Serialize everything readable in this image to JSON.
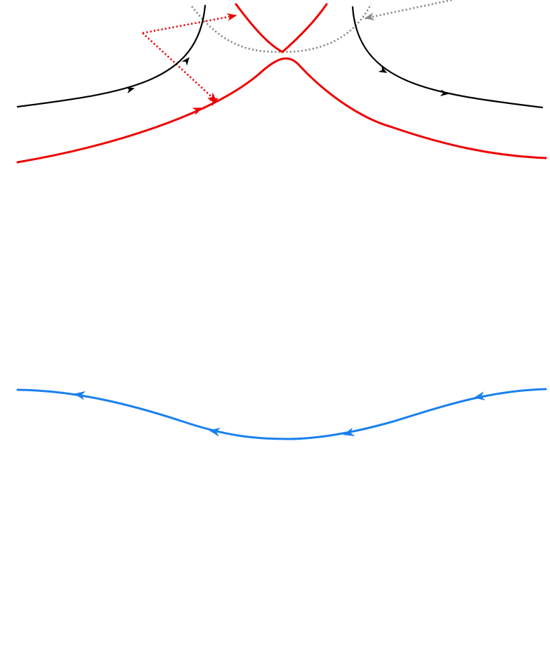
{
  "colors": {
    "background": "#ffffff",
    "trajectory": "#000000",
    "separatrix": "#ee0000",
    "construction": "#888888",
    "perturbed_orbit": "#1a80ee"
  },
  "elements": {
    "black_trajectory": {
      "count": 2,
      "arrow_icon": "arrow-head-icon"
    },
    "red_separatrix": {
      "count": 2,
      "arrow_icon": "arrow-head-icon"
    },
    "gray_dotted_arc": {
      "count": 1,
      "arrow_icon": "arrow-head-icon"
    },
    "red_dotted_indicator": {
      "count": 2,
      "arrow_icon": "arrow-head-icon"
    },
    "blue_curve": {
      "count": 1,
      "arrow_icon": "arrow-head-icon",
      "direction": "right-to-left"
    }
  }
}
